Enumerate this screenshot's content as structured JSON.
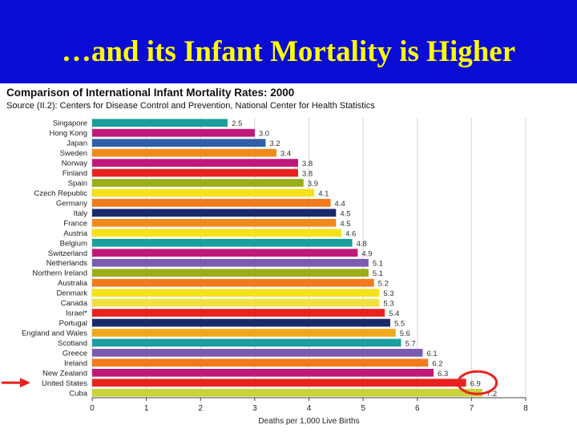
{
  "slide": {
    "title": "…and its Infant Mortality is Higher"
  },
  "colors": {
    "header_bg": "#0b0bd6",
    "title_text": "#ffff00",
    "highlight_circle": "#e8231f",
    "arrow": "#e8231f"
  },
  "chart_data": {
    "type": "bar",
    "orientation": "horizontal",
    "title": "Comparison of International Infant Mortality Rates: 2000",
    "subtitle": "Source (II.2): Centers for Disease Control and Prevention, National Center for Health Statistics",
    "xlabel": "Deaths per 1,000 Live Births",
    "ylabel": "",
    "xlim": [
      0,
      8
    ],
    "xticks": [
      "0",
      "1",
      "2",
      "3",
      "4",
      "5",
      "6",
      "7",
      "8"
    ],
    "grid": "vertical",
    "categories": [
      "Singapore",
      "Hong Kong",
      "Japan",
      "Sweden",
      "Norway",
      "Finland",
      "Spain",
      "Czech Republic",
      "Germany",
      "Italy",
      "France",
      "Austria",
      "Belgium",
      "Switzerland",
      "Netherlands",
      "Northern Ireland",
      "Australia",
      "Denmark",
      "Canada",
      "Israel*",
      "Portugal",
      "England and Wales",
      "Scotland",
      "Greece",
      "Ireland",
      "New Zealand",
      "United States",
      "Cuba"
    ],
    "values": [
      2.5,
      3.0,
      3.2,
      3.4,
      3.8,
      3.8,
      3.9,
      4.1,
      4.4,
      4.5,
      4.5,
      4.6,
      4.8,
      4.9,
      5.1,
      5.1,
      5.2,
      5.3,
      5.3,
      5.4,
      5.5,
      5.6,
      5.7,
      6.1,
      6.2,
      6.3,
      6.9,
      7.2
    ],
    "value_labels": [
      "2.5",
      "3.0",
      "3.2",
      "3.4",
      "3.8",
      "3.8",
      "3.9",
      "4.1",
      "4.4",
      "4.5",
      "4.5",
      "4.6",
      "4.8",
      "4.9",
      "5.1",
      "5.1",
      "5.2",
      "5.3",
      "5.3",
      "5.4",
      "5.5",
      "5.6",
      "5.7",
      "6.1",
      "6.2",
      "6.3",
      "6.9",
      "7.2"
    ],
    "bar_colors": [
      "#1a9e9e",
      "#c0187a",
      "#2f5fa8",
      "#f08a1c",
      "#c0187a",
      "#e8231f",
      "#9aad1a",
      "#f5e21a",
      "#f07a1c",
      "#1a2a6c",
      "#f08a1c",
      "#f5e21a",
      "#1a9e9e",
      "#c0187a",
      "#7b5bb0",
      "#9aad1a",
      "#f07a1c",
      "#f5e21a",
      "#f0e040",
      "#e8231f",
      "#1a2a6c",
      "#f0a81c",
      "#1a9e9e",
      "#7b5bb0",
      "#f07a1c",
      "#c0187a",
      "#e8231f",
      "#c9d33a"
    ],
    "highlight": {
      "category": "United States",
      "marker": "circle and arrow"
    }
  }
}
